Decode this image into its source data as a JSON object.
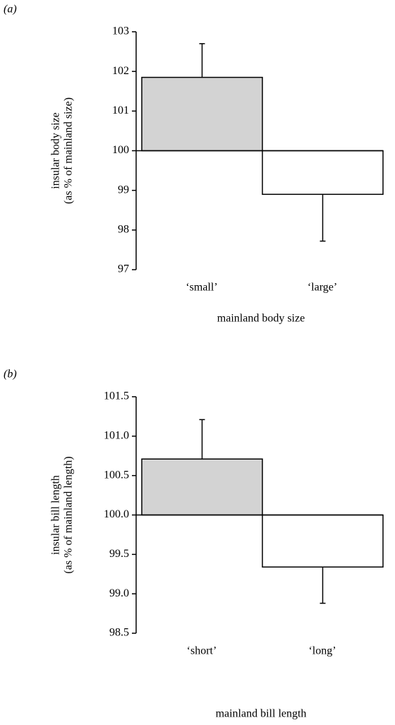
{
  "chart_data": [
    {
      "type": "bar",
      "panel": "(a)",
      "ylabel": [
        "insular body size",
        "(as % of mainland size)"
      ],
      "xlabel": "mainland body size",
      "categories": [
        "‘small’",
        "‘large’"
      ],
      "values": [
        101.85,
        98.9
      ],
      "errors": [
        0.85,
        1.18
      ],
      "colors": [
        "#d3d3d3",
        "#ffffff"
      ],
      "baseline": 100,
      "ylim": [
        97,
        103
      ],
      "yticks": [
        97,
        98,
        99,
        100,
        101,
        102,
        103
      ]
    },
    {
      "type": "bar",
      "panel": "(b)",
      "ylabel": [
        "insular bill length",
        "(as % of mainland length)"
      ],
      "xlabel": "mainland bill length",
      "categories": [
        "‘short’",
        "‘long’"
      ],
      "values": [
        100.71,
        99.34
      ],
      "errors": [
        0.5,
        0.46
      ],
      "colors": [
        "#d3d3d3",
        "#ffffff"
      ],
      "baseline": 100,
      "ylim": [
        98.5,
        101.5
      ],
      "yticks": [
        98.5,
        {
          "value": 99,
          "label": "99.0"
        },
        99.5,
        {
          "value": 100,
          "label": "100.0"
        },
        100.5,
        {
          "value": 101,
          "label": "101.0"
        },
        101.5
      ]
    }
  ]
}
